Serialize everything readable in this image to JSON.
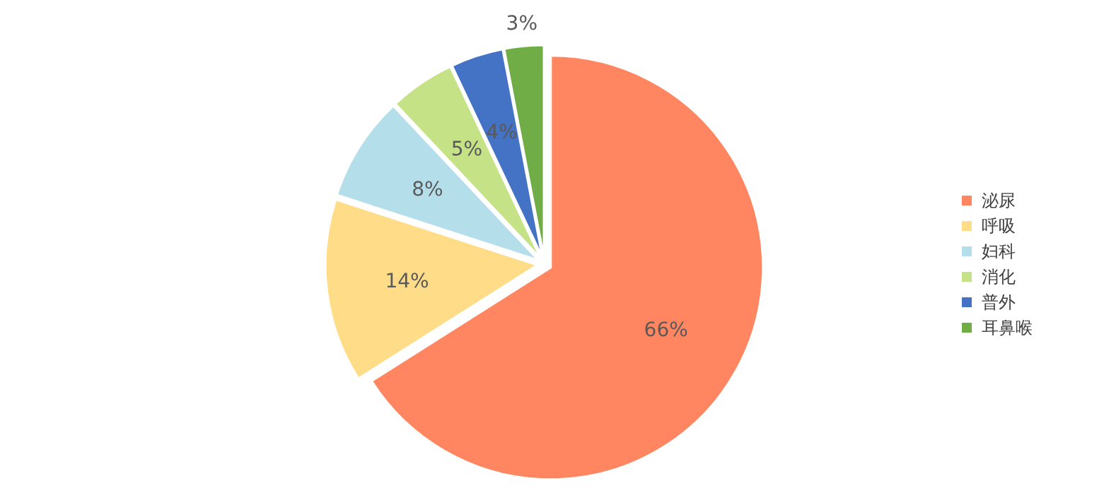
{
  "chart_data": {
    "type": "pie",
    "categories": [
      "泌尿",
      "呼吸",
      "妇科",
      "消化",
      "普外",
      "耳鼻喉"
    ],
    "values": [
      66,
      14,
      8,
      5,
      4,
      3
    ],
    "colors": [
      "#ff8660",
      "#ffdd88",
      "#b4dfea",
      "#c5e386",
      "#4472c4",
      "#70ad47"
    ],
    "value_labels": [
      "66%",
      "14%",
      "8%",
      "5%",
      "4%",
      "3%"
    ],
    "legend": "right"
  }
}
